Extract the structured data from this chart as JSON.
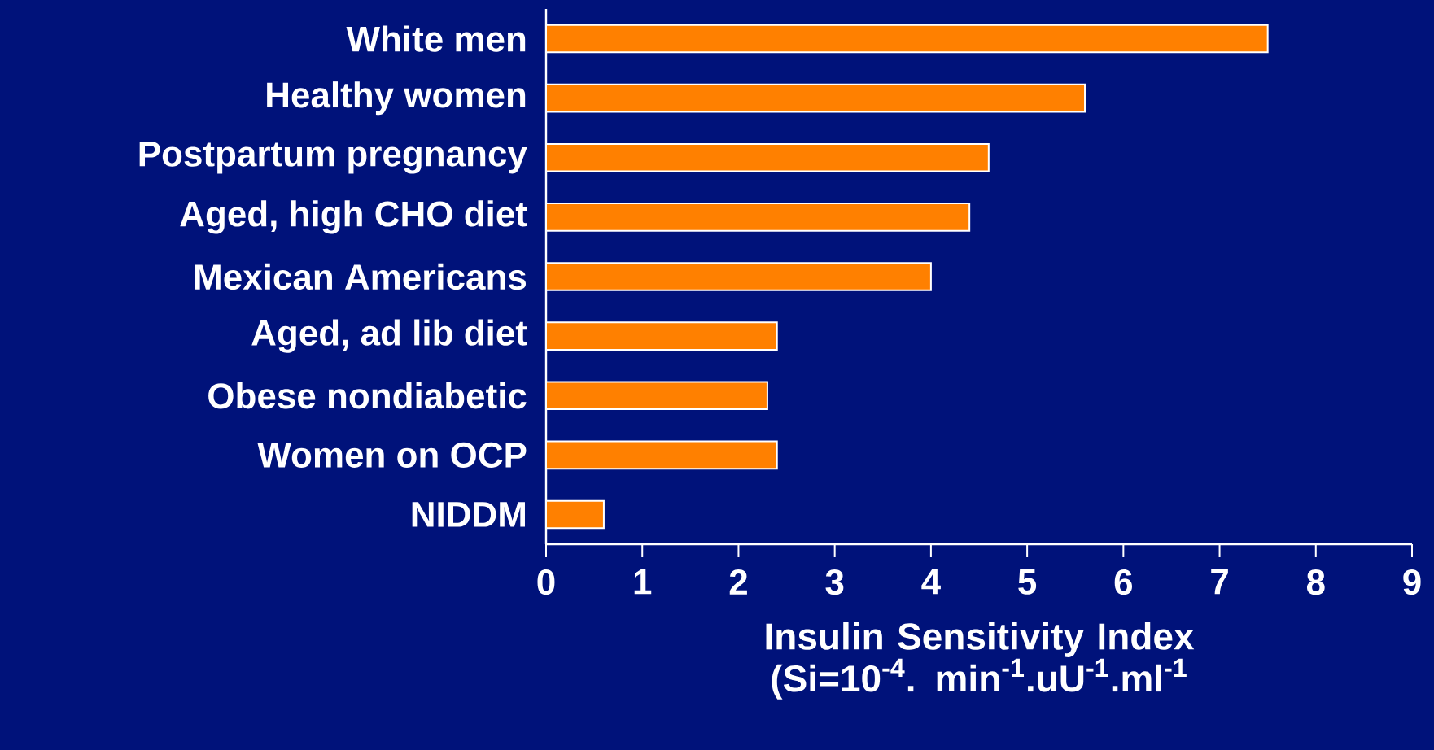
{
  "chart_data": {
    "type": "bar",
    "orientation": "horizontal",
    "categories": [
      "White men",
      "Healthy women",
      "Postpartum pregnancy",
      "Aged, high CHO diet",
      "Mexican Americans",
      "Aged, ad lib diet",
      "Obese nondiabetic",
      "Women on OCP",
      "NIDDM"
    ],
    "values": [
      7.5,
      5.6,
      4.6,
      4.4,
      4.0,
      2.4,
      2.3,
      2.4,
      0.6
    ],
    "color": "#ff8000",
    "xlim": [
      0,
      9
    ],
    "xticks": [
      0,
      1,
      2,
      3,
      4,
      5,
      6,
      7,
      8,
      9
    ],
    "xlabel": "Insulin Sensitivity Index (Si=10$^{-4}$. min$^{-1}$.uU$^{-1}$.ml$^{-1}$"
  }
}
